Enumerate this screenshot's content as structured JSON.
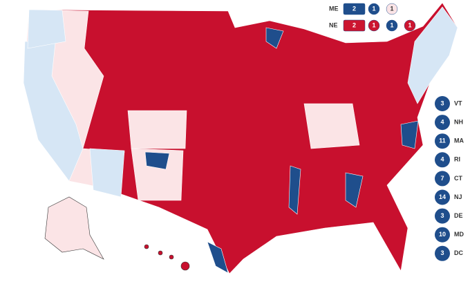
{
  "split_states": [
    {
      "state": "ME",
      "items": [
        {
          "value": 2,
          "shape": "box",
          "color": "#1f4e8c"
        },
        {
          "value": 1,
          "shape": "circle",
          "color": "#1f4e8c"
        },
        {
          "value": 1,
          "shape": "circle",
          "color": "#fbe4e6"
        }
      ]
    },
    {
      "state": "NE",
      "items": [
        {
          "value": 2,
          "shape": "box",
          "color": "#cc1530"
        },
        {
          "value": 1,
          "shape": "circle",
          "color": "#cc1530"
        },
        {
          "value": 1,
          "shape": "circle",
          "color": "#1f4e8c"
        },
        {
          "value": 1,
          "shape": "circle",
          "color": "#cc1530"
        }
      ]
    }
  ],
  "small_states": [
    {
      "value": 3,
      "state": "VT"
    },
    {
      "value": 4,
      "state": "NH"
    },
    {
      "value": 11,
      "state": "MA"
    },
    {
      "value": 4,
      "state": "RI"
    },
    {
      "value": 7,
      "state": "CT"
    },
    {
      "value": 14,
      "state": "NJ"
    },
    {
      "value": 3,
      "state": "DE"
    },
    {
      "value": 10,
      "state": "MD"
    },
    {
      "value": 3,
      "state": "DC"
    }
  ],
  "small_state_color": "#1f4e8c"
}
